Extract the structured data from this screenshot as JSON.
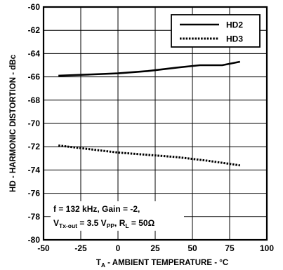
{
  "chart_data": {
    "type": "line",
    "title": "",
    "xlabel": {
      "prefix": "T",
      "sub": "A",
      "text": " - AMBIENT TEMPERATURE - °C"
    },
    "ylabel": "HD - HARMONIC DISTORTION - dBc",
    "xlim": [
      -50,
      100
    ],
    "ylim": [
      -80,
      -60
    ],
    "xticks": [
      -50,
      -25,
      0,
      25,
      50,
      75,
      100
    ],
    "yticks": [
      -60,
      -62,
      -64,
      -66,
      -68,
      -70,
      -72,
      -74,
      -76,
      -78,
      -80
    ],
    "grid": true,
    "legend_position": "top-right",
    "series": [
      {
        "name": "HD2",
        "style": "solid",
        "color": "#000000",
        "x": [
          -40,
          -20,
          0,
          20,
          40,
          55,
          70,
          82
        ],
        "y": [
          -65.9,
          -65.8,
          -65.7,
          -65.5,
          -65.2,
          -65.0,
          -65.0,
          -64.7
        ]
      },
      {
        "name": "HD3",
        "style": "dotted",
        "color": "#000000",
        "x": [
          -40,
          -20,
          0,
          20,
          40,
          60,
          82
        ],
        "y": [
          -71.9,
          -72.2,
          -72.5,
          -72.7,
          -72.9,
          -73.2,
          -73.6
        ]
      }
    ],
    "annotation": {
      "line1": "f = 132 kHz, Gain = -2,",
      "line2_parts": [
        {
          "t": "V",
          "sub": false
        },
        {
          "t": "Tx-out",
          "sub": true
        },
        {
          "t": " = 3.5 V",
          "sub": false
        },
        {
          "t": "PP",
          "sub": true
        },
        {
          "t": ", R",
          "sub": false
        },
        {
          "t": "L",
          "sub": true
        },
        {
          "t": " = 50Ω",
          "sub": false
        }
      ]
    }
  }
}
